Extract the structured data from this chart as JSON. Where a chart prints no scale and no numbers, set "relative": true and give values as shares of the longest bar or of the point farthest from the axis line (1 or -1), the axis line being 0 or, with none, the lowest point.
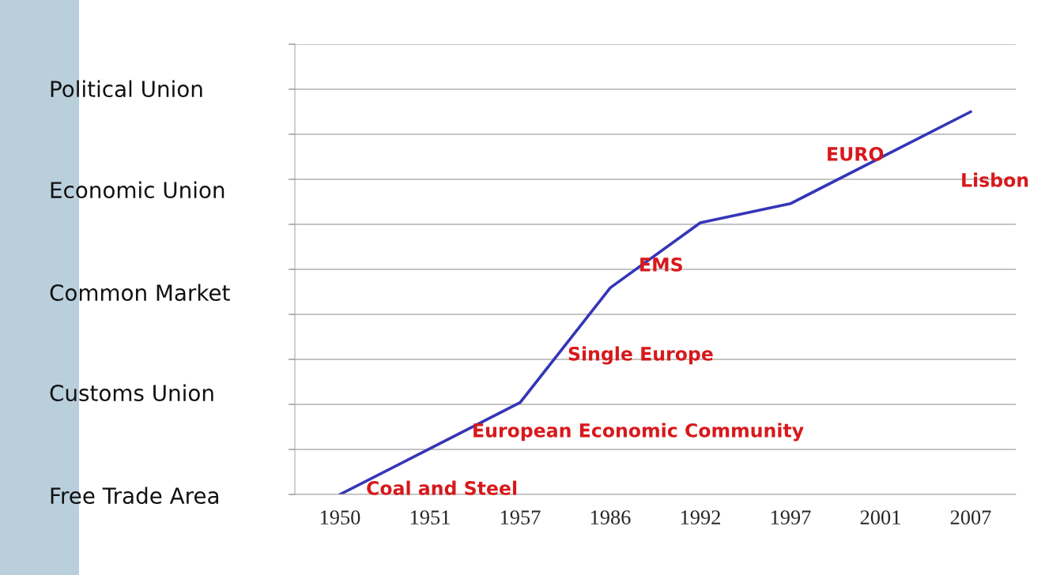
{
  "chart_data": {
    "type": "line",
    "categories": [
      "1950",
      "1951",
      "1957",
      "1986",
      "1992",
      "1997",
      "2001",
      "2007"
    ],
    "series": [
      {
        "color": "#3535b8",
        "values": [
          0,
          0.12,
          0.24,
          0.54,
          0.71,
          0.76,
          0.88,
          1
        ]
      }
    ],
    "relative": true,
    "annotations": [
      "Political Union",
      "Economic Union",
      "Common Market",
      "Customs Union",
      "Free Trade Area",
      "Coal and Steel",
      "European Economic Community",
      "Single Europe",
      "EMS",
      "EURO",
      "Lisbon"
    ],
    "grid": "y",
    "marker": "none",
    "line_style": "solid"
  }
}
